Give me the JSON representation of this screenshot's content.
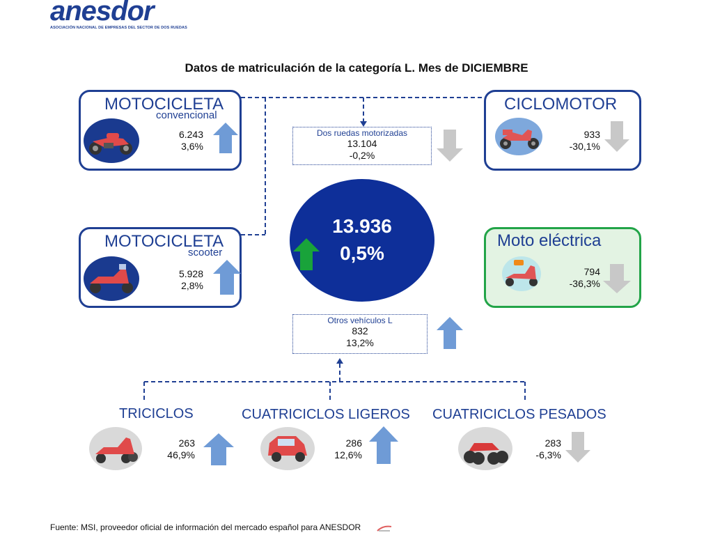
{
  "header": {
    "logo": "anesdor",
    "logo_subtitle": "ASOCIACIÓN NACIONAL DE EMPRESAS DEL SECTOR DE DOS RUEDAS",
    "title": "Datos de matriculación de la categoría L. Mes de DICIEMBRE"
  },
  "moto_convencional": {
    "title": "MOTOCICLETA",
    "subtitle": "convencional",
    "units": "6.243",
    "pct": "3,6%",
    "trend": "up",
    "icon": "motorcycle-icon"
  },
  "moto_scooter": {
    "title": "MOTOCICLETA",
    "subtitle": "scooter",
    "units": "5.928",
    "pct": "2,8%",
    "trend": "up",
    "icon": "scooter-icon"
  },
  "ciclomotor": {
    "title": "CICLOMOTOR",
    "units": "933",
    "pct": "-30,1%",
    "trend": "down",
    "icon": "moped-icon"
  },
  "moto_electrica": {
    "title": "Moto eléctrica",
    "units": "794",
    "pct": "-36,3%",
    "trend": "down",
    "icon": "electric-scooter-icon"
  },
  "dos_ruedas": {
    "label": "Dos ruedas motorizadas",
    "units": "13.104",
    "pct": "-0,2%",
    "trend": "down"
  },
  "total": {
    "units": "13.936",
    "pct": "0,5%",
    "trend": "up"
  },
  "otros": {
    "label": "Otros vehículos L",
    "units": "832",
    "pct": "13,2%",
    "trend": "up"
  },
  "triciclos": {
    "title": "TRICICLOS",
    "units": "263",
    "pct": "46,9%",
    "trend": "up",
    "icon": "tricycle-icon"
  },
  "cuatri_ligeros": {
    "title": "CUATRICICLOS LIGEROS",
    "units": "286",
    "pct": "12,6%",
    "trend": "up",
    "icon": "microcar-icon"
  },
  "cuatri_pesados": {
    "title": "CUATRICICLOS PESADOS",
    "units": "283",
    "pct": "-6,3%",
    "trend": "down",
    "icon": "quad-icon"
  },
  "colors": {
    "primary": "#1f3f93",
    "arrow_up": "#6f9bd6",
    "arrow_down": "#c8c8c8",
    "arrow_green": "#19a33a",
    "electric_border": "#22a448",
    "oval": "#0e2f99"
  },
  "footer": {
    "source": "Fuente: MSI, proveedor oficial de información del mercado español para ANESDOR"
  }
}
